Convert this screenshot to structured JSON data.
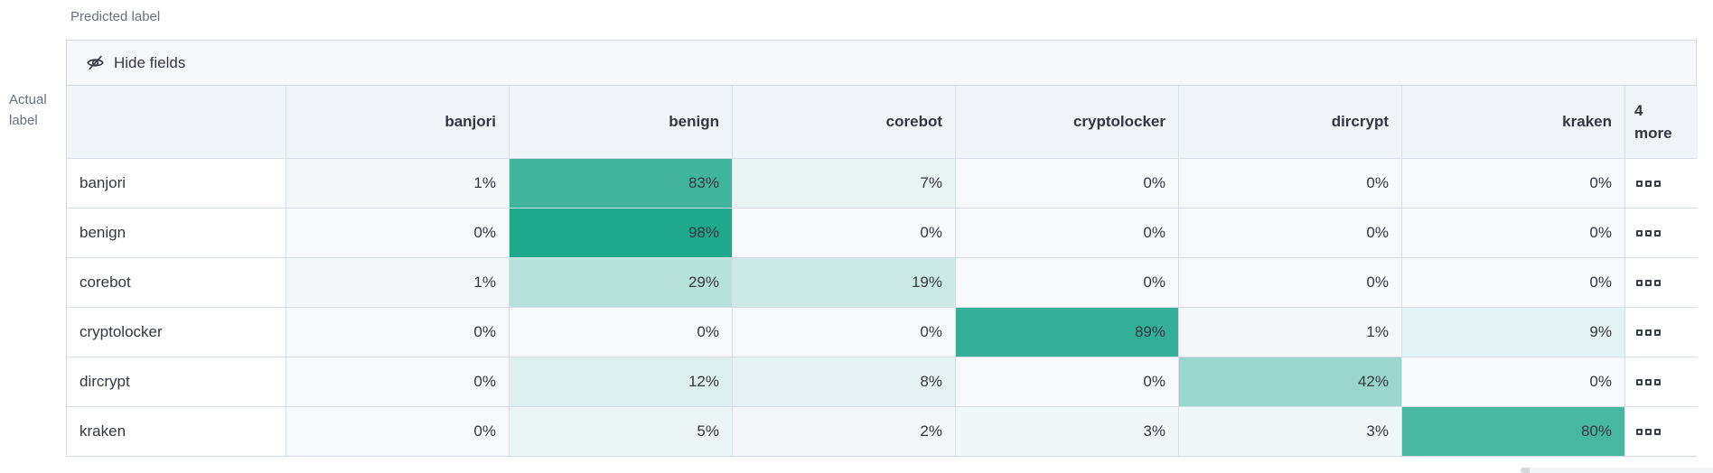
{
  "page": {
    "predicted_axis_label": "Predicted label",
    "actual_axis_label": "Actual\nlabel"
  },
  "toolbar": {
    "hide_fields_label": "Hide fields",
    "hide_fields_icon": "eye-closed-icon"
  },
  "icons": {
    "more_actions": "boxes-horizontal-icon"
  },
  "colors": {
    "cell_base": "#f7f9fc",
    "cell_max": "#1ba68a",
    "border": "#d3dae6",
    "text": "#343741",
    "muted_text": "#69707d",
    "header_bg": "#f1f4f9",
    "toolbar_bg": "#f7f8fc"
  },
  "chart_data": {
    "type": "heatmap",
    "x_axis_label": "Predicted label",
    "y_axis_label": "Actual label",
    "columns": [
      "banjori",
      "benign",
      "corebot",
      "cryptolocker",
      "dircrypt",
      "kraken"
    ],
    "extra_columns_header": "4\nmore",
    "rows": [
      "banjori",
      "benign",
      "corebot",
      "cryptolocker",
      "dircrypt",
      "kraken"
    ],
    "values_percent": [
      [
        1,
        83,
        7,
        0,
        0,
        0
      ],
      [
        0,
        98,
        0,
        0,
        0,
        0
      ],
      [
        1,
        29,
        19,
        0,
        0,
        0
      ],
      [
        0,
        0,
        0,
        89,
        1,
        9
      ],
      [
        0,
        12,
        8,
        0,
        42,
        0
      ],
      [
        0,
        5,
        2,
        3,
        3,
        80
      ]
    ],
    "value_suffix": "%",
    "legend": "none",
    "color_scale": {
      "min_color": "#f7f9fc",
      "max_color": "#1ba68a",
      "domain": [
        0,
        100
      ]
    }
  }
}
